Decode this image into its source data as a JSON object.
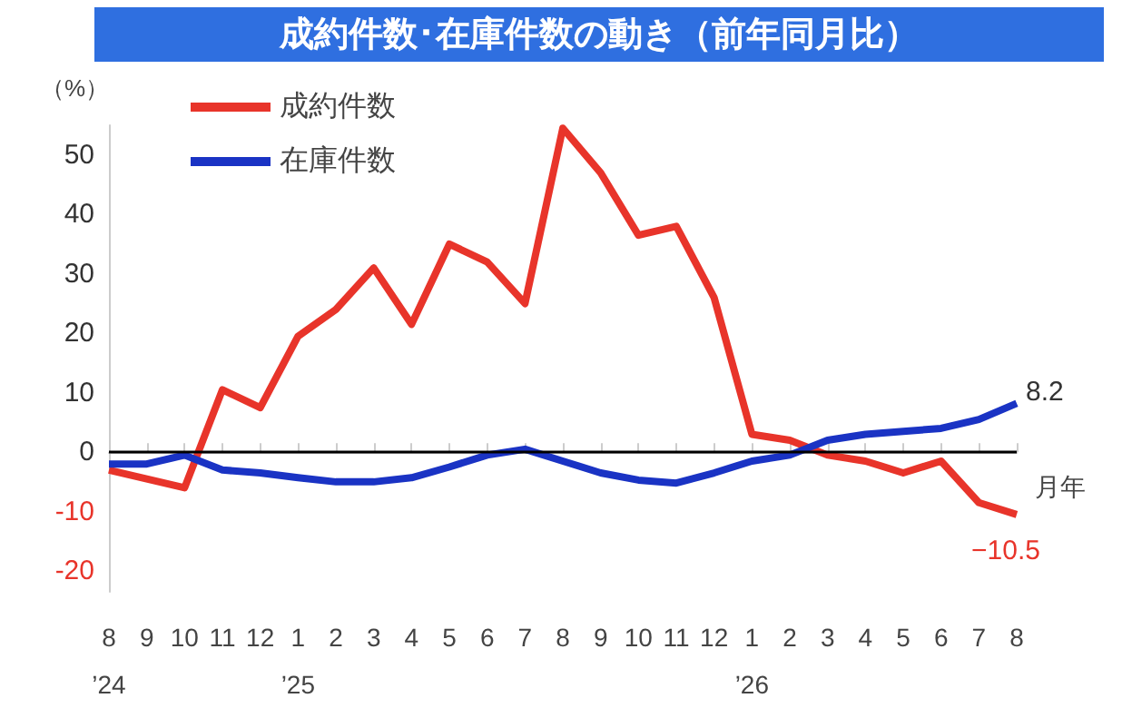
{
  "chart_data": {
    "type": "line",
    "title": "成約件数･在庫件数の動き（前年同月比）",
    "ylabel": "（%）",
    "xlabel": "月年",
    "categories": [
      "8\n’24",
      "9",
      "10",
      "11",
      "12",
      "1\n’25",
      "2",
      "3",
      "4",
      "5",
      "6",
      "7",
      "8",
      "9",
      "10",
      "11",
      "12",
      "1\n’26",
      "2",
      "3",
      "4",
      "5",
      "6",
      "7",
      "8"
    ],
    "series": [
      {
        "name": "成約件数",
        "color": "#e8342a",
        "values": [
          -3,
          -4.5,
          -6,
          10.5,
          7.5,
          19.5,
          24,
          31,
          21.5,
          35,
          32,
          25,
          54.5,
          47,
          36.5,
          38,
          26,
          3,
          2,
          -0.5,
          -1.5,
          -3.5,
          -1.5,
          -8.5,
          -10.5
        ],
        "value_labels": [
          null,
          null,
          null,
          null,
          null,
          null,
          null,
          null,
          null,
          null,
          null,
          null,
          null,
          null,
          null,
          null,
          null,
          null,
          null,
          null,
          null,
          null,
          null,
          null,
          "−10.5"
        ]
      },
      {
        "name": "在庫件数",
        "color": "#1a33c4",
        "values": [
          -2,
          -2,
          -0.5,
          -3,
          -3.5,
          -4.3,
          -5,
          -5,
          -4.3,
          -2.5,
          -0.5,
          0.5,
          -1.5,
          -3.5,
          -4.7,
          -5.2,
          -3.5,
          -1.5,
          -0.5,
          2,
          3,
          3.5,
          4,
          5.5,
          8.2
        ],
        "value_labels": [
          null,
          null,
          null,
          null,
          null,
          null,
          null,
          null,
          null,
          null,
          null,
          null,
          null,
          null,
          null,
          null,
          null,
          null,
          null,
          null,
          null,
          null,
          null,
          null,
          "8.2"
        ]
      }
    ],
    "ylim": [
      -23.5,
      55
    ],
    "yticks": [
      -20,
      -10,
      0,
      10,
      20,
      30,
      40,
      50
    ],
    "ref_lines": [
      {
        "axis": "y",
        "value": 0,
        "color": "#000000"
      }
    ],
    "grid": false,
    "legend": "top left",
    "marker": "none",
    "line_style": "solid"
  }
}
